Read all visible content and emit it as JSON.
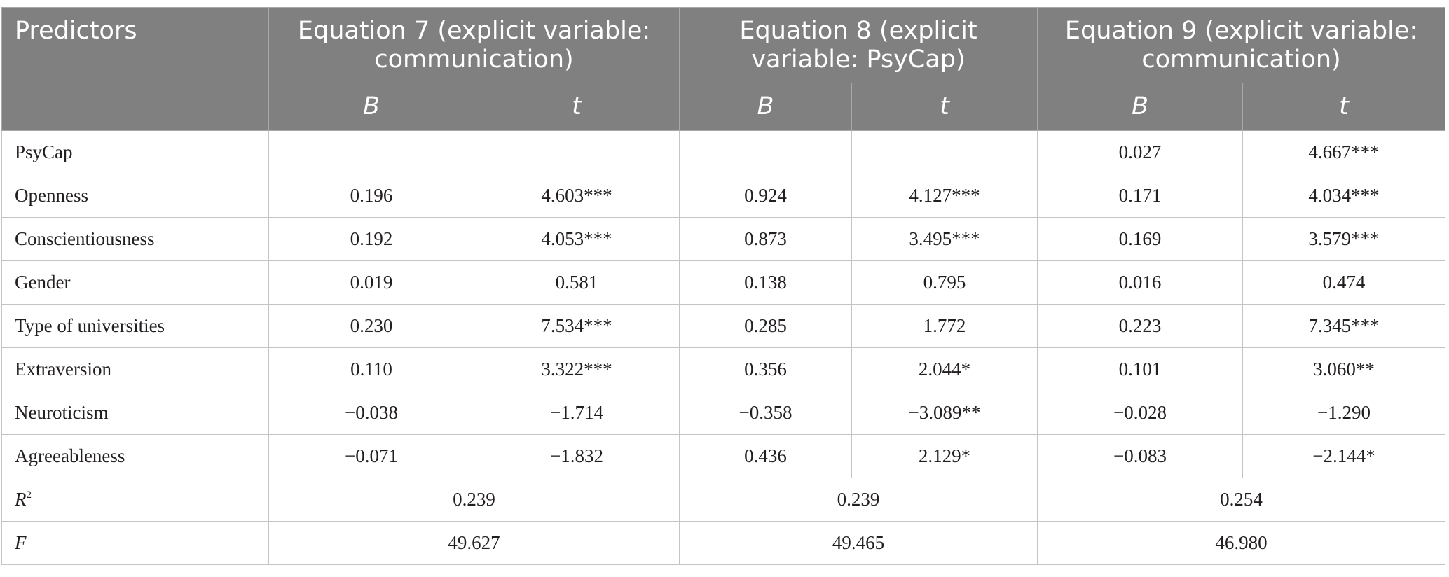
{
  "table": {
    "header": {
      "predictors": "Predictors",
      "equations": [
        {
          "title_line1": "Equation 7 (explicit variable:",
          "title_line2": "communication)",
          "b": "B",
          "t": "t"
        },
        {
          "title_line1": "Equation 8 (explicit",
          "title_line2": "variable: PsyCap)",
          "b": "B",
          "t": "t"
        },
        {
          "title_line1": "Equation 9 (explicit variable:",
          "title_line2": "communication)",
          "b": "B",
          "t": "t"
        }
      ]
    },
    "rows": [
      {
        "label": "PsyCap",
        "cells": [
          "",
          "",
          "",
          "",
          "0.027",
          "4.667***"
        ]
      },
      {
        "label": "Openness",
        "cells": [
          "0.196",
          "4.603***",
          "0.924",
          "4.127***",
          "0.171",
          "4.034***"
        ]
      },
      {
        "label": "Conscientiousness",
        "cells": [
          "0.192",
          "4.053***",
          "0.873",
          "3.495***",
          "0.169",
          "3.579***"
        ]
      },
      {
        "label": "Gender",
        "cells": [
          "0.019",
          "0.581",
          "0.138",
          "0.795",
          "0.016",
          "0.474"
        ]
      },
      {
        "label": "Type of universities",
        "cells": [
          "0.230",
          "7.534***",
          "0.285",
          "1.772",
          "0.223",
          "7.345***"
        ]
      },
      {
        "label": "Extraversion",
        "cells": [
          "0.110",
          "3.322***",
          "0.356",
          "2.044*",
          "0.101",
          "3.060**"
        ]
      },
      {
        "label": "Neuroticism",
        "cells": [
          "−0.038",
          "−1.714",
          "−0.358",
          "−3.089**",
          "−0.028",
          "−1.290"
        ]
      },
      {
        "label": "Agreeableness",
        "cells": [
          "−0.071",
          "−1.832",
          "0.436",
          "2.129*",
          "−0.083",
          "−2.144*"
        ]
      }
    ],
    "r2": {
      "label_base": "R",
      "label_sup": "2",
      "values": [
        "0.239",
        "0.239",
        "0.254"
      ]
    },
    "f": {
      "label": "F",
      "values": [
        "49.627",
        "49.465",
        "46.980"
      ]
    }
  }
}
